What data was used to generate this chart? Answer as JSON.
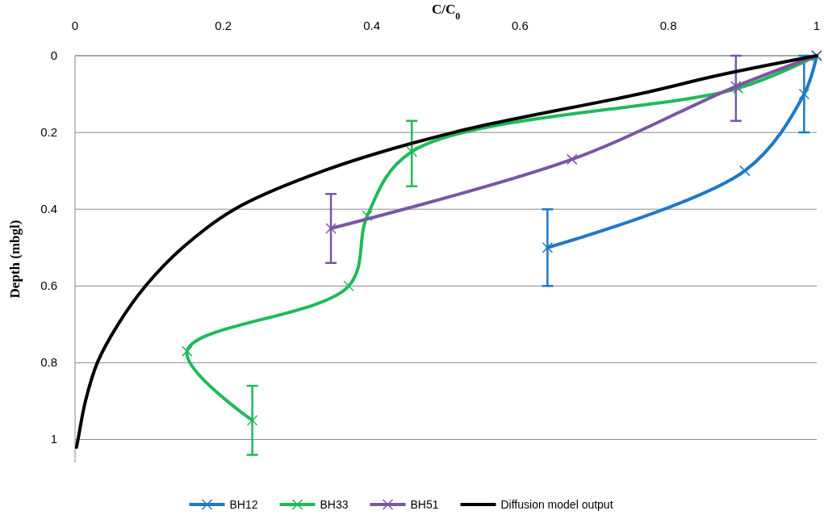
{
  "chart_data": {
    "type": "line",
    "xlabel": "C/C$_{0}$",
    "ylabel": "Depth (mbgl)",
    "xlim": [
      0,
      1
    ],
    "xticks": [
      0,
      0.2,
      0.4,
      0.6,
      0.8,
      1
    ],
    "ylim": [
      1.06,
      0
    ],
    "yticks": [
      0,
      0.2,
      0.4,
      0.6,
      0.8,
      1
    ],
    "grid": "y",
    "legend": "bottom",
    "marker": "cross",
    "series": [
      {
        "name": "BH12",
        "color": "#1f78c8",
        "x": [
          1,
          0.983,
          0.903,
          0.637
        ],
        "values": [
          0,
          0.1,
          0.3,
          0.5
        ],
        "errors": [
          null,
          0.1,
          null,
          0.1
        ]
      },
      {
        "name": "BH33",
        "color": "#1fba5a",
        "x": [
          1,
          0.894,
          0.454,
          0.394,
          0.369,
          0.151,
          0.239
        ],
        "values": [
          0,
          0.085,
          0.25,
          0.417,
          0.6,
          0.77,
          0.95
        ],
        "errors": [
          null,
          null,
          [
            0.17,
            0.34
          ],
          null,
          null,
          null,
          [
            0.86,
            1.04
          ]
        ]
      },
      {
        "name": "BH51",
        "color": "#7b56a3",
        "x": [
          1,
          0.891,
          0.67,
          0.345
        ],
        "values": [
          0,
          0.08,
          0.27,
          0.45
        ],
        "errors": [
          null,
          [
            0,
            0.17
          ],
          null,
          [
            0.36,
            0.54
          ]
        ]
      },
      {
        "name": "Diffusion model output",
        "color": "#000000",
        "marker": "none",
        "x": [
          1,
          0.87,
          0.76,
          0.51,
          0.335,
          0.215,
          0.145,
          0.095,
          0.058,
          0.03,
          0.014,
          0.004,
          0.002
        ],
        "values": [
          0,
          0.05,
          0.1,
          0.2,
          0.3,
          0.4,
          0.5,
          0.6,
          0.7,
          0.8,
          0.9,
          1.0,
          1.02
        ]
      }
    ]
  }
}
